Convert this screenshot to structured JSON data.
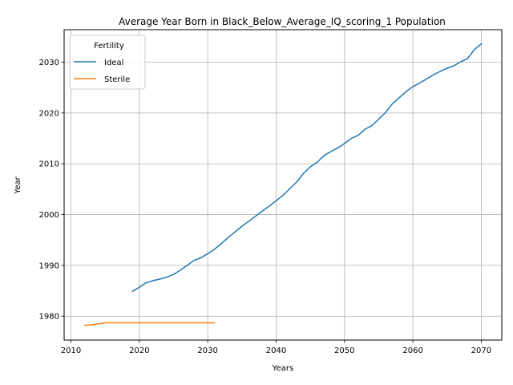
{
  "chart_data": {
    "type": "line",
    "title": "Average Year Born in Black_Below_Average_IQ_scoring_1 Population",
    "xlabel": "Years",
    "ylabel": "Year",
    "xlim": [
      2009,
      2073
    ],
    "ylim": [
      1975.3,
      2036.4
    ],
    "xticks": [
      2010,
      2020,
      2030,
      2040,
      2050,
      2060,
      2070
    ],
    "yticks": [
      1980,
      1990,
      2000,
      2010,
      2020,
      2030
    ],
    "grid": true,
    "legend": {
      "title": "Fertility",
      "placement": "top-left"
    },
    "series": [
      {
        "name": "Ideal",
        "color": "#1f77b4",
        "x": [
          2019,
          2020,
          2021,
          2022,
          2023,
          2024,
          2025,
          2026,
          2027,
          2028,
          2029,
          2030,
          2031,
          2032,
          2033,
          2034,
          2035,
          2036,
          2037,
          2038,
          2039,
          2040,
          2041,
          2042,
          2043,
          2044,
          2045,
          2046,
          2047,
          2048,
          2049,
          2050,
          2051,
          2052,
          2053,
          2054,
          2055,
          2056,
          2057,
          2058,
          2059,
          2060,
          2061,
          2062,
          2063,
          2064,
          2065,
          2066,
          2067,
          2068,
          2069,
          2070
        ],
        "y": [
          1984.9,
          1985.7,
          1986.6,
          1987.0,
          1987.3,
          1987.7,
          1988.2,
          1989.1,
          1990.0,
          1991.0,
          1991.5,
          1992.3,
          1993.2,
          1994.3,
          1995.5,
          1996.6,
          1997.7,
          1998.7,
          1999.7,
          2000.7,
          2001.7,
          2002.7,
          2003.8,
          2005.1,
          2006.4,
          2008.1,
          2009.4,
          2010.3,
          2011.6,
          2012.4,
          2013.1,
          2014.0,
          2015.0,
          2015.6,
          2016.8,
          2017.5,
          2018.8,
          2020.1,
          2021.8,
          2023.0,
          2024.2,
          2025.2,
          2025.9,
          2026.7,
          2027.5,
          2028.2,
          2028.8,
          2029.3,
          2030.1,
          2030.7,
          2032.5,
          2033.6
        ]
      },
      {
        "name": "Sterile",
        "color": "#ff7f0e",
        "x": [
          2012,
          2013,
          2014,
          2015,
          2016,
          2017,
          2018,
          2019,
          2020,
          2021,
          2022,
          2023,
          2024,
          2025,
          2026,
          2027,
          2028,
          2029,
          2030,
          2031
        ],
        "y": [
          1978.2,
          1978.3,
          1978.5,
          1978.7,
          1978.7,
          1978.7,
          1978.7,
          1978.7,
          1978.7,
          1978.7,
          1978.7,
          1978.7,
          1978.7,
          1978.7,
          1978.7,
          1978.7,
          1978.7,
          1978.7,
          1978.7,
          1978.7
        ]
      }
    ]
  }
}
